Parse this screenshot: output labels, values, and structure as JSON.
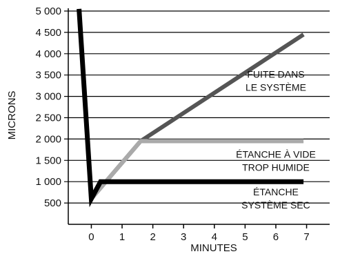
{
  "chart_data": {
    "type": "line",
    "title": "",
    "xlabel": "MINUTES",
    "ylabel": "MICRONS",
    "xlim": [
      -0.75,
      7.75
    ],
    "ylim": [
      0,
      5000
    ],
    "grid": "horizontal",
    "x_ticks": [
      "0",
      "1",
      "2",
      "3",
      "4",
      "5",
      "6",
      "7"
    ],
    "y_ticks": [
      "500",
      "1 000",
      "1 500",
      "2 000",
      "2 500",
      "3 000",
      "3 500",
      "4 000",
      "4 500",
      "5 000"
    ],
    "series": [
      {
        "key": "leak",
        "color": "#555555",
        "points": [
          [
            0.0,
            600
          ],
          [
            1.6,
            1950
          ],
          [
            6.9,
            4450
          ]
        ]
      },
      {
        "key": "wet",
        "color": "#aaaaaa",
        "points": [
          [
            0.0,
            600
          ],
          [
            1.6,
            1950
          ],
          [
            6.9,
            1950
          ]
        ]
      },
      {
        "key": "dry",
        "color": "#000000",
        "points": [
          [
            -0.4,
            5050
          ],
          [
            0.0,
            600
          ],
          [
            0.3,
            1000
          ],
          [
            6.9,
            1000
          ]
        ]
      }
    ],
    "annotations": [
      {
        "key": "leak",
        "lines": [
          "FUITE DANS",
          "LE SYSTÈME"
        ],
        "x": 6.0,
        "y": 3440
      },
      {
        "key": "wet",
        "lines": [
          "ÉTANCHE À VIDE",
          "TROP HUMIDE"
        ],
        "x": 6.0,
        "y": 1560
      },
      {
        "key": "dry",
        "lines": [
          "ÉTANCHE",
          "SYSTÈME SEC"
        ],
        "x": 6.0,
        "y": 680
      }
    ]
  }
}
